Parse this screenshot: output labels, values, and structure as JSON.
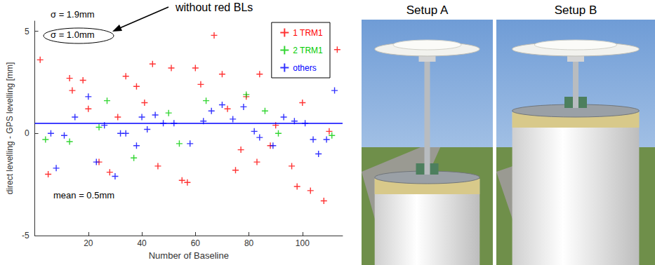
{
  "chart_data": {
    "type": "scatter",
    "x_label": "Number of Baseline",
    "y_label": "direct levelling - GPS levelling [mm]",
    "xlim": [
      0,
      115
    ],
    "xticks": [
      20,
      40,
      60,
      80,
      100
    ],
    "ylim": [
      -5,
      5.5
    ],
    "yticks": [
      -5,
      0,
      5
    ],
    "legend": "upper right",
    "marker": "plus",
    "mean": 0.5,
    "annotations": [
      "σ = 1.9mm",
      "σ = 1.0mm",
      "mean = 0.5mm",
      "without red BLs"
    ],
    "series": [
      {
        "name": "1 TRM1",
        "color": "#ff0000",
        "x": [
          2,
          5,
          13,
          14,
          18,
          20,
          24,
          28,
          31,
          38,
          44,
          46,
          51,
          55,
          57,
          62,
          67,
          70,
          75,
          77,
          79,
          83,
          84,
          90,
          96,
          98,
          100,
          103,
          108,
          110,
          113,
          34,
          41,
          60,
          88,
          72
        ],
        "values": [
          3.6,
          -2.0,
          2.7,
          2.1,
          2.6,
          1.2,
          -1.4,
          -1.9,
          0.8,
          2.3,
          3.4,
          -1.6,
          3.2,
          -2.3,
          -2.4,
          2.4,
          4.8,
          2.9,
          -1.8,
          -0.8,
          1.8,
          -1.4,
          2.9,
          0.4,
          -1.6,
          -2.6,
          1.5,
          -2.8,
          -3.3,
          0.1,
          4.1,
          2.8,
          1.5,
          3.2,
          -0.6,
          1.2
        ]
      },
      {
        "name": "2 TRM1",
        "color": "#00cc00",
        "x": [
          4,
          13,
          27,
          37,
          50,
          54,
          64,
          79,
          91,
          111,
          24,
          86
        ],
        "values": [
          -0.3,
          -0.4,
          1.6,
          -1.2,
          1.0,
          -0.5,
          1.6,
          1.9,
          0.0,
          -0.1,
          0.3,
          1.1
        ]
      },
      {
        "name": "others",
        "color": "#0000ff",
        "x": [
          6,
          8,
          11,
          15,
          20,
          23,
          26,
          30,
          32,
          34,
          38,
          40,
          42,
          45,
          48,
          52,
          58,
          63,
          66,
          70,
          74,
          78,
          82,
          84,
          89,
          93,
          97,
          101,
          104,
          106,
          109,
          112
        ],
        "values": [
          0.0,
          -1.7,
          -0.1,
          0.8,
          1.8,
          -1.4,
          0.4,
          -2.1,
          0.0,
          0.0,
          -0.6,
          0.8,
          0.2,
          0.9,
          0.5,
          0.5,
          -0.5,
          0.6,
          1.1,
          1.4,
          0.7,
          1.3,
          0.1,
          -0.2,
          -0.6,
          0.8,
          0.6,
          0.5,
          -0.3,
          -1.0,
          -0.3,
          2.1
        ]
      }
    ]
  },
  "panels": [
    {
      "title": "Setup A"
    },
    {
      "title": "Setup B"
    }
  ]
}
